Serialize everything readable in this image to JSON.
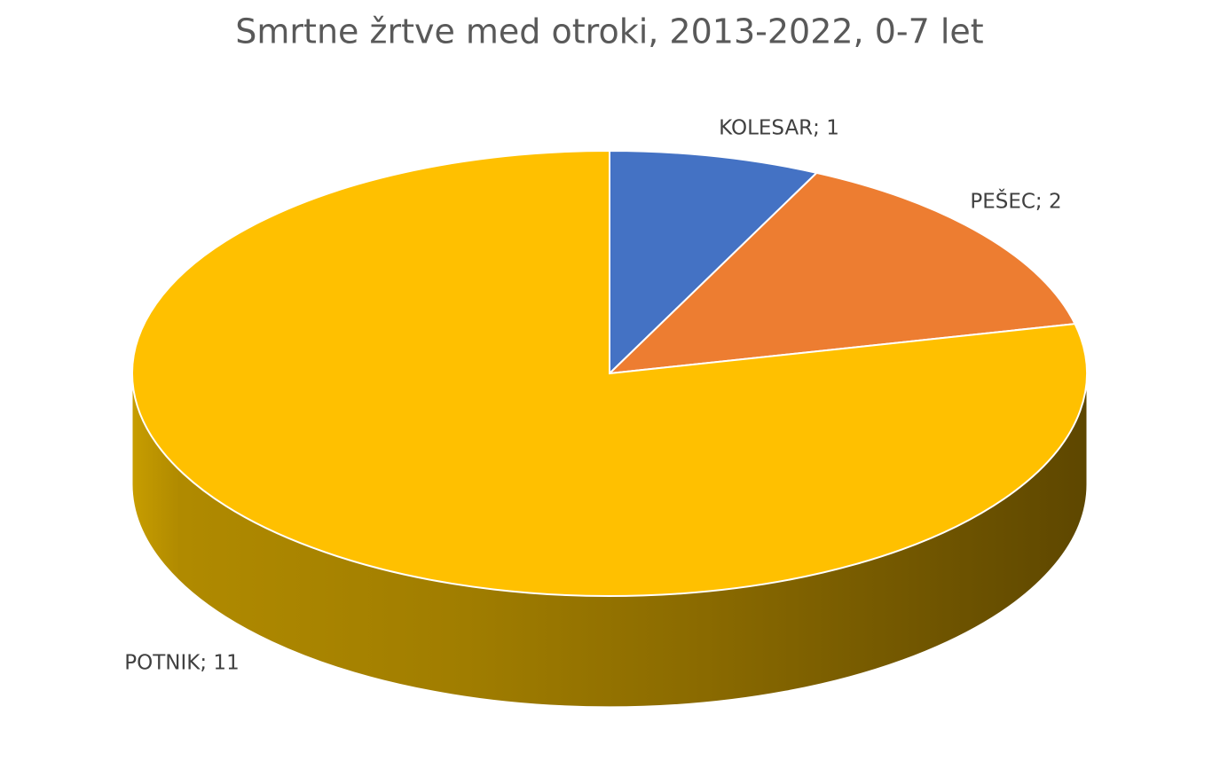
{
  "chart_data": {
    "type": "pie",
    "title": "Smrtne žrtve med otroki, 2013-2022, 0-7 let",
    "values": [
      1,
      2,
      11
    ],
    "value_labels": [
      "KOLESAR; 1",
      "PEŠEC; 2",
      "POTNIK; 11"
    ],
    "colors": [
      "#4472c4",
      "#ed7d31",
      "#ffc000"
    ]
  }
}
